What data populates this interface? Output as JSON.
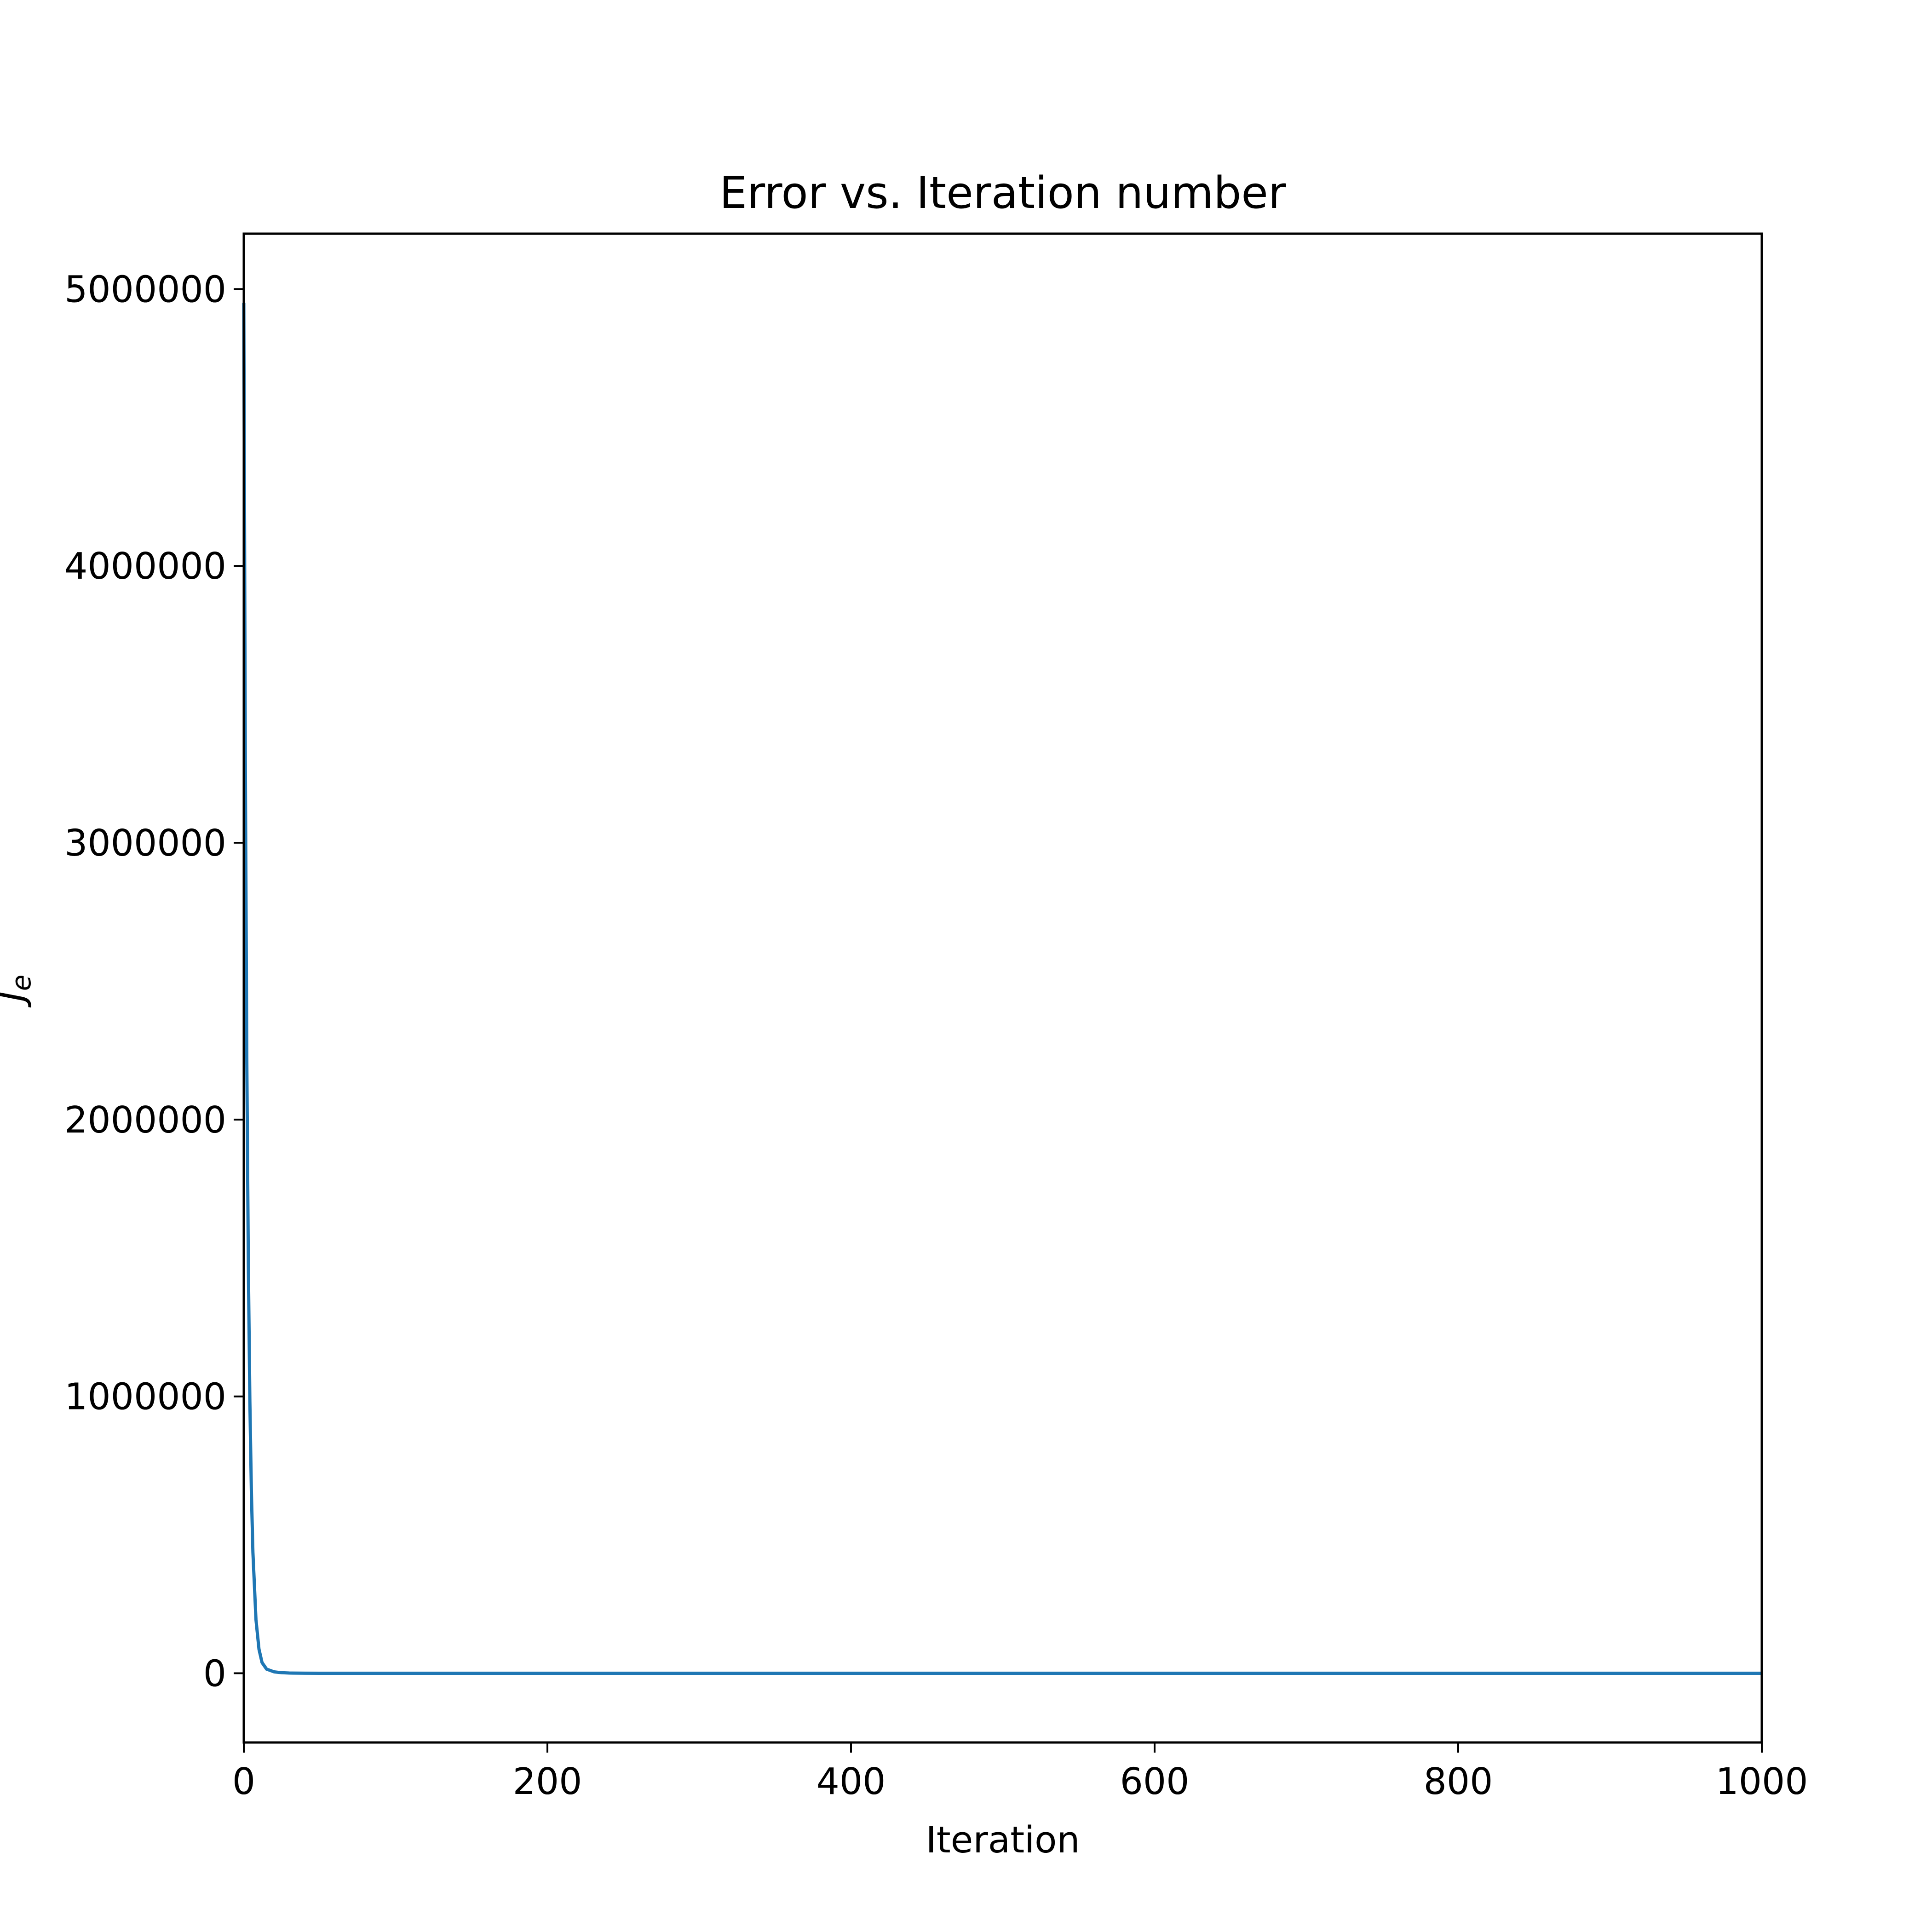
{
  "chart_data": {
    "type": "line",
    "title": "Error vs. Iteration number",
    "xlabel": "Iteration",
    "ylabel": "J",
    "ylabel_subscript": "e",
    "xlim": [
      0,
      1000
    ],
    "ylim": [
      -250000,
      5200000
    ],
    "xticks": [
      0,
      200,
      400,
      600,
      800,
      1000
    ],
    "xtick_labels": [
      "0",
      "200",
      "400",
      "600",
      "800",
      "1000"
    ],
    "yticks": [
      0,
      1000000,
      2000000,
      3000000,
      4000000,
      5000000
    ],
    "ytick_labels": [
      "0",
      "1000000",
      "2000000",
      "3000000",
      "4000000",
      "5000000"
    ],
    "grid": false,
    "series": [
      {
        "color": "#1f77b4",
        "x": [
          0,
          1,
          2,
          3,
          4,
          5,
          6,
          8,
          10,
          12,
          15,
          20,
          25,
          30,
          40,
          50,
          100,
          200,
          300,
          400,
          500,
          600,
          700,
          800,
          900,
          1000
        ],
        "y": [
          4950000,
          3300000,
          2200000,
          1470000,
          980000,
          655000,
          437000,
          195000,
          87000,
          39000,
          15000,
          5000,
          2000,
          900,
          300,
          100,
          0,
          0,
          0,
          0,
          0,
          0,
          0,
          0,
          0,
          0
        ]
      }
    ]
  }
}
